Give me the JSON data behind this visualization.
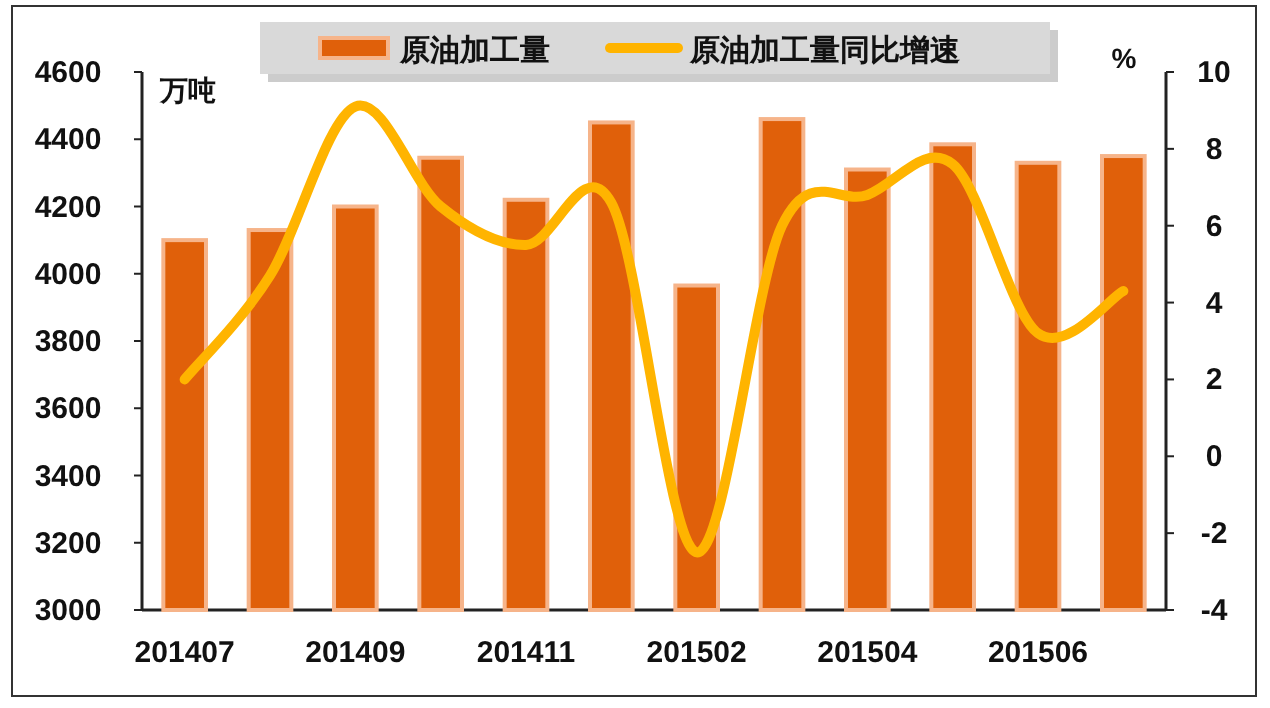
{
  "chart_data": {
    "type": "bar",
    "categories": [
      "201407",
      null,
      "201409",
      null,
      "201411",
      null,
      "201502",
      null,
      "201504",
      null,
      "201506",
      null
    ],
    "ylabel": "万吨",
    "y2label": "%",
    "ylim": [
      3000,
      4600
    ],
    "yticks": [
      3000,
      3200,
      3400,
      3600,
      3800,
      4000,
      4200,
      4400,
      4600
    ],
    "y2lim": [
      -4,
      10
    ],
    "y2ticks": [
      -4,
      -2,
      0,
      2,
      4,
      6,
      8,
      10
    ],
    "legend": "top",
    "grid": false,
    "series": [
      {
        "name": "原油加工量",
        "color": "#e0600a",
        "values": [
          4100,
          4130,
          4200,
          4345,
          4220,
          4450,
          3965,
          4460,
          4310,
          4385,
          4330,
          4350
        ]
      },
      {
        "name": "原油加工量同比增速",
        "type": "line",
        "axis": "y2",
        "color": "#ffb400",
        "values": [
          2.0,
          4.7,
          9.1,
          6.5,
          5.5,
          6.6,
          -2.5,
          6.0,
          6.8,
          7.6,
          3.2,
          4.3
        ]
      }
    ]
  }
}
